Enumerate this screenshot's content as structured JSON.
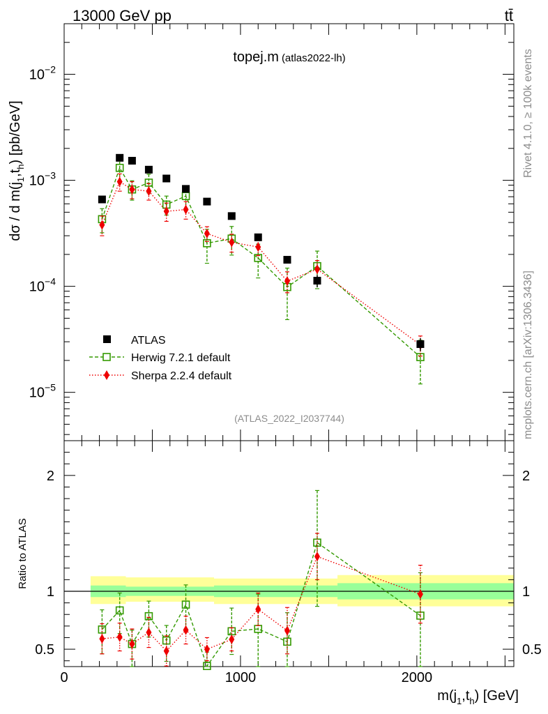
{
  "header": {
    "energy_label": "13000 GeV pp",
    "process_label": "tt̄"
  },
  "side_labels": {
    "rivet": "Rivet 4.1.0, ≥ 100k events",
    "mcplots": "mcplots.cern.ch [arXiv:1306.3436]"
  },
  "chart_data": [
    {
      "panel": "main",
      "type": "scatter",
      "title": "topej.m",
      "subtitle": "(atlas2022-lh)",
      "watermark": "(ATLAS_2022_I2037744)",
      "ylabel": "dσ / d m(j1,th) [pb/GeV]",
      "ylabel_parts": {
        "main": "dσ / d m(j",
        "sub1": "1",
        "mid": ",t",
        "sub2": "h",
        "end": ") [pb/GeV]"
      },
      "yscale": "log",
      "ylim": [
        3.5e-06,
        0.03
      ],
      "xlim": [
        0,
        2550
      ],
      "ytick_labels": [
        {
          "value": 1e-05,
          "base": "10",
          "exp": "−5"
        },
        {
          "value": 0.0001,
          "base": "10",
          "exp": "−4"
        },
        {
          "value": 0.001,
          "base": "10",
          "exp": "−3"
        },
        {
          "value": 0.01,
          "base": "10",
          "exp": "−2"
        }
      ],
      "legend_position": "bottom-left",
      "series": [
        {
          "name": "ATLAS",
          "style": "black-square",
          "color": "#000000",
          "x": [
            215,
            315,
            385,
            480,
            580,
            690,
            810,
            950,
            1100,
            1265,
            1435,
            2020
          ],
          "y": [
            0.00066,
            0.00163,
            0.00153,
            0.00126,
            0.00104,
            0.00083,
            0.00063,
            0.00046,
            0.00029,
            0.000178,
            0.000113,
            2.85e-05
          ],
          "err_lo": [
            0,
            0,
            0,
            0,
            0,
            0,
            0,
            0,
            0,
            0,
            1.5e-05,
            4e-06
          ],
          "err_hi": [
            0,
            0,
            0,
            0,
            0,
            0,
            0,
            0,
            0,
            0,
            1.5e-05,
            4e-06
          ]
        },
        {
          "name": "Herwig 7.2.1 default",
          "style": "green-open-square-dashed",
          "color": "#339900",
          "x": [
            215,
            315,
            385,
            480,
            580,
            690,
            810,
            950,
            1100,
            1265,
            1435,
            2020
          ],
          "y": [
            0.00043,
            0.00131,
            0.00082,
            0.00095,
            0.00059,
            0.00071,
            0.000255,
            0.000282,
            0.000185,
            9.85e-05,
            0.000155,
            2.15e-05
          ],
          "err_lo": [
            0.00011,
            0.00033,
            0.00017,
            0.00019,
            0.00012,
            0.00018,
            9e-05,
            8.5e-05,
            6.5e-05,
            5e-05,
            6e-05,
            9.5e-06
          ],
          "err_hi": [
            0.00011,
            0.00033,
            0.00017,
            0.00019,
            0.00012,
            0.00018,
            9e-05,
            8.5e-05,
            6.5e-05,
            5e-05,
            6e-05,
            9.5e-06
          ]
        },
        {
          "name": "Sherpa 2.2.4 default",
          "style": "red-diamond-dotted",
          "color": "#ee0000",
          "x": [
            215,
            315,
            385,
            480,
            580,
            690,
            810,
            950,
            1100,
            1265,
            1435,
            2020
          ],
          "y": [
            0.00038,
            0.00097,
            0.00082,
            0.00079,
            0.00051,
            0.00053,
            0.000315,
            0.00026,
            0.000235,
            0.000112,
            0.000145,
            2.8e-05
          ],
          "err_lo": [
            8e-05,
            0.00018,
            0.00015,
            0.00014,
            0.0001,
            0.0001,
            5e-05,
            5e-05,
            4e-05,
            2.5e-05,
            3e-05,
            6e-06
          ],
          "err_hi": [
            8e-05,
            0.00018,
            0.00015,
            0.00014,
            0.0001,
            0.0001,
            5e-05,
            5e-05,
            4e-05,
            2.5e-05,
            3e-05,
            6e-06
          ]
        }
      ]
    },
    {
      "panel": "ratio",
      "type": "scatter",
      "ylabel": "Ratio to ATLAS",
      "xlabel": "m(j1,th) [GeV]",
      "xlabel_parts": {
        "main": "m(j",
        "sub1": "1",
        "mid": ",t",
        "sub2": "h",
        "end": ") [GeV]"
      },
      "xlim": [
        0,
        2550
      ],
      "ylim": [
        0.35,
        2.3
      ],
      "yticks": [
        0.5,
        1,
        2
      ],
      "ytick_labels": [
        "0.5",
        "1",
        "2"
      ],
      "xticks": [
        0,
        1000,
        2000
      ],
      "xtick_labels": [
        "0",
        "1000",
        "2000"
      ],
      "reference_line": 1,
      "uncertainty_bands": {
        "edges": [
          150,
          350,
          850,
          1550,
          2550
        ],
        "inner_lo": [
          0.95,
          0.96,
          0.95,
          0.93
        ],
        "inner_hi": [
          1.05,
          1.04,
          1.05,
          1.07
        ],
        "outer_lo": [
          0.89,
          0.91,
          0.89,
          0.87
        ],
        "outer_hi": [
          1.13,
          1.12,
          1.11,
          1.14
        ],
        "inner_color": "#99ff99",
        "outer_color": "#ffff99"
      },
      "series": [
        {
          "name": "Herwig 7.2.1 default",
          "color": "#339900",
          "x": [
            215,
            315,
            385,
            480,
            580,
            690,
            810,
            950,
            1100,
            1265,
            1435,
            2020
          ],
          "y": [
            0.67,
            0.835,
            0.545,
            0.785,
            0.575,
            0.885,
            0.355,
            0.655,
            0.675,
            0.565,
            1.42,
            0.79
          ],
          "err_lo": [
            0.21,
            0.2,
            0.2,
            0.18,
            0.18,
            0.21,
            0.12,
            0.2,
            0.35,
            0.25,
            0.55,
            0.5
          ],
          "err_hi": [
            0.17,
            0.15,
            0.12,
            0.13,
            0.13,
            0.17,
            0.12,
            0.2,
            0.3,
            0.25,
            0.45,
            0.37
          ]
        },
        {
          "name": "Sherpa 2.2.4 default",
          "color": "#ee0000",
          "x": [
            215,
            315,
            385,
            480,
            580,
            690,
            810,
            950,
            1100,
            1265,
            1435,
            2020
          ],
          "y": [
            0.59,
            0.605,
            0.545,
            0.645,
            0.485,
            0.665,
            0.5,
            0.585,
            0.845,
            0.66,
            1.3,
            0.975
          ],
          "err_lo": [
            0.13,
            0.12,
            0.13,
            0.13,
            0.13,
            0.12,
            0.1,
            0.1,
            0.14,
            0.2,
            0.2,
            0.25
          ],
          "err_hi": [
            0.13,
            0.12,
            0.13,
            0.13,
            0.13,
            0.12,
            0.1,
            0.1,
            0.14,
            0.2,
            0.2,
            0.25
          ]
        }
      ]
    }
  ]
}
